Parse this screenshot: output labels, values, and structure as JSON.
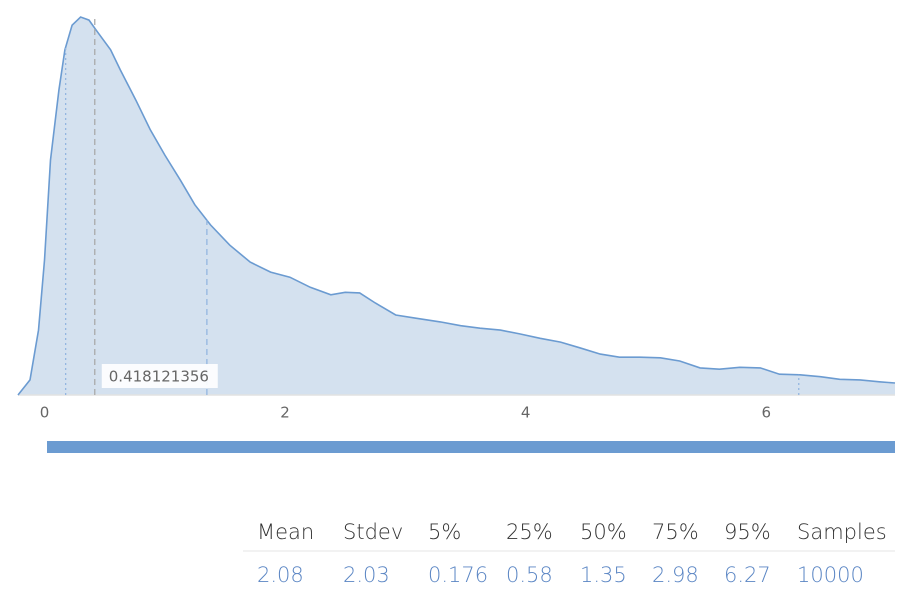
{
  "chart_data": {
    "type": "area",
    "x": [
      -0.22,
      -0.12,
      -0.05,
      0,
      0.05,
      0.12,
      0.17,
      0.23,
      0.3,
      0.37,
      0.43,
      0.55,
      0.63,
      0.76,
      0.88,
      1.0,
      1.13,
      1.25,
      1.38,
      1.54,
      1.71,
      1.88,
      2.04,
      2.21,
      2.38,
      2.5,
      2.62,
      2.75,
      2.92,
      3.08,
      3.29,
      3.46,
      3.62,
      3.79,
      3.95,
      4.12,
      4.29,
      4.45,
      4.62,
      4.78,
      4.95,
      5.12,
      5.28,
      5.45,
      5.61,
      5.78,
      5.95,
      6.11,
      6.28,
      6.45,
      6.61,
      6.78,
      6.94,
      7.07
    ],
    "values": [
      0,
      0.024,
      0.103,
      0.214,
      0.373,
      0.484,
      0.548,
      0.587,
      0.6,
      0.595,
      0.579,
      0.548,
      0.516,
      0.468,
      0.421,
      0.381,
      0.341,
      0.302,
      0.27,
      0.238,
      0.211,
      0.195,
      0.187,
      0.171,
      0.159,
      0.163,
      0.162,
      0.146,
      0.127,
      0.122,
      0.116,
      0.11,
      0.106,
      0.103,
      0.097,
      0.09,
      0.084,
      0.075,
      0.065,
      0.06,
      0.06,
      0.059,
      0.054,
      0.043,
      0.041,
      0.044,
      0.043,
      0.033,
      0.032,
      0.029,
      0.025,
      0.024,
      0.021,
      0.019
    ],
    "color": "#6b9bd1",
    "fill": "#d4e1ef",
    "xlim": [
      -0.22,
      7.07
    ],
    "ylim": [
      0,
      0.6
    ],
    "xticks": [
      0,
      2,
      4,
      6
    ],
    "hover": 0.418121356
  },
  "summary": {
    "headers": [
      "Mean",
      "Stdev",
      "5%",
      "25%",
      "50%",
      "75%",
      "95%",
      "Samples"
    ],
    "values": [
      2.08,
      2.03,
      0.176,
      0.58,
      1.35,
      2.98,
      6.27,
      10000
    ]
  }
}
